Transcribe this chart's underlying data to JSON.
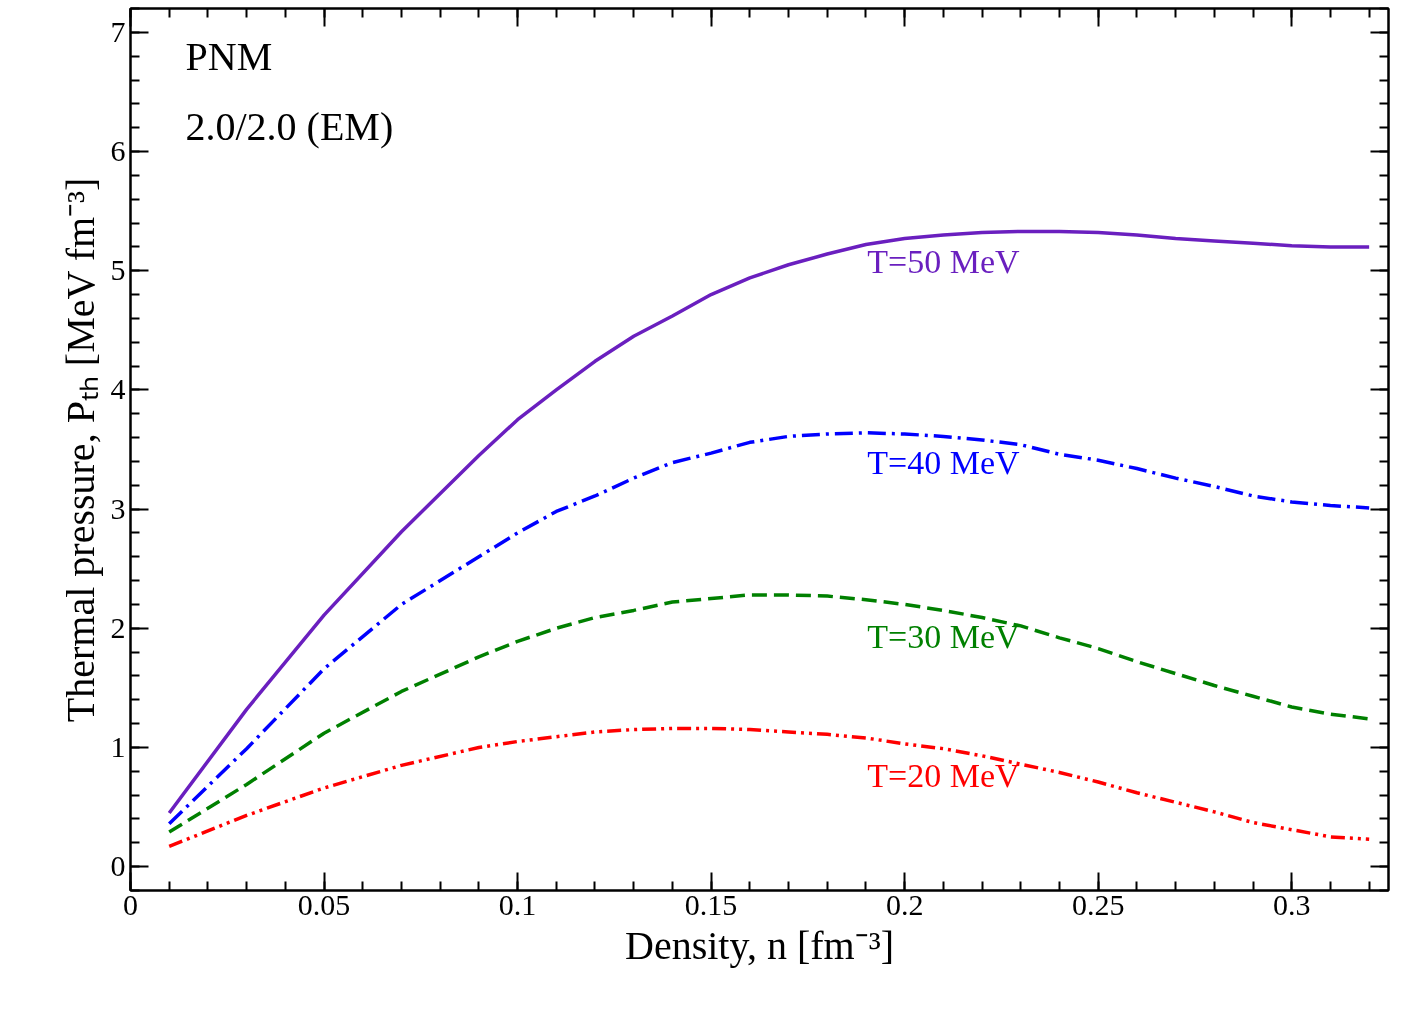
{
  "chart_data": {
    "type": "line",
    "xlabel": "Density, n [fm⁻³]",
    "ylabel": "Thermal pressure, Pₜₕ [MeV fm⁻³]",
    "annotations": [
      "PNM",
      "2.0/2.0 (EM)"
    ],
    "x": [
      0.01,
      0.03,
      0.05,
      0.07,
      0.09,
      0.1,
      0.11,
      0.12,
      0.13,
      0.14,
      0.15,
      0.16,
      0.17,
      0.18,
      0.19,
      0.2,
      0.21,
      0.22,
      0.23,
      0.24,
      0.25,
      0.26,
      0.27,
      0.28,
      0.29,
      0.3,
      0.31,
      0.32
    ],
    "series": [
      {
        "name": "T=50 MeV",
        "color": "#6a1fbf",
        "line_style": "solid",
        "values": [
          0.45,
          1.32,
          2.11,
          2.81,
          3.45,
          3.75,
          4.0,
          4.24,
          4.45,
          4.62,
          4.8,
          4.94,
          5.05,
          5.14,
          5.22,
          5.27,
          5.3,
          5.32,
          5.33,
          5.33,
          5.32,
          5.3,
          5.27,
          5.25,
          5.23,
          5.21,
          5.2,
          5.2
        ]
      },
      {
        "name": "T=40 MeV",
        "color": "#0000ff",
        "line_style": "dashdot",
        "values": [
          0.36,
          0.99,
          1.66,
          2.2,
          2.6,
          2.8,
          2.98,
          3.11,
          3.26,
          3.39,
          3.47,
          3.56,
          3.61,
          3.63,
          3.64,
          3.63,
          3.61,
          3.58,
          3.54,
          3.46,
          3.41,
          3.34,
          3.26,
          3.19,
          3.11,
          3.06,
          3.03,
          3.01
        ]
      },
      {
        "name": "T=30 MeV",
        "color": "#008000",
        "line_style": "dashed",
        "values": [
          0.29,
          0.69,
          1.12,
          1.47,
          1.76,
          1.89,
          2.0,
          2.09,
          2.15,
          2.22,
          2.25,
          2.28,
          2.28,
          2.27,
          2.24,
          2.2,
          2.15,
          2.09,
          2.02,
          1.92,
          1.83,
          1.72,
          1.62,
          1.52,
          1.43,
          1.34,
          1.28,
          1.24
        ]
      },
      {
        "name": "T=20 MeV",
        "color": "#ff0000",
        "line_style": "dashdotdot",
        "values": [
          0.17,
          0.43,
          0.66,
          0.85,
          1.0,
          1.05,
          1.09,
          1.13,
          1.15,
          1.16,
          1.16,
          1.15,
          1.13,
          1.11,
          1.08,
          1.03,
          0.99,
          0.93,
          0.86,
          0.79,
          0.71,
          0.62,
          0.54,
          0.46,
          0.37,
          0.31,
          0.25,
          0.23
        ]
      }
    ],
    "xlim": [
      0,
      0.325
    ],
    "ylim": [
      -0.2,
      7.2
    ],
    "xticks": [
      0,
      0.05,
      0.1,
      0.15,
      0.2,
      0.25,
      0.3
    ],
    "yticks": [
      0,
      1,
      2,
      3,
      4,
      5,
      6,
      7
    ],
    "grid": false
  }
}
